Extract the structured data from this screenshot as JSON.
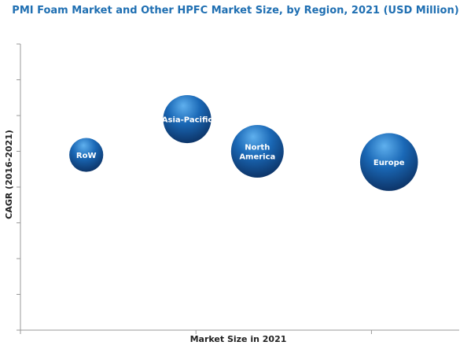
{
  "chart_data": {
    "type": "scatter",
    "title": "PMI Foam Market and Other HPFC Market Size, by Region, 2021 (USD Million)",
    "xlabel": "Market Size in 2021",
    "ylabel": "CAGR (2016-2021)",
    "xlim": [
      0,
      10
    ],
    "ylim": [
      0,
      8
    ],
    "series": [
      {
        "points": [
          {
            "label": "RoW",
            "x": 1.5,
            "y": 4.9,
            "size": 1.0
          },
          {
            "label": "Asia-Pacific",
            "x": 3.8,
            "y": 5.9,
            "size": 2.0
          },
          {
            "label": "North America",
            "x": 5.4,
            "y": 5.0,
            "size": 2.4
          },
          {
            "label": "Europe",
            "x": 8.4,
            "y": 4.7,
            "size": 2.9
          }
        ]
      }
    ]
  },
  "colors": {
    "title": "#1f6fb2",
    "bubble_light": "#5fb0ee",
    "bubble_mid": "#1a68b6",
    "bubble_dark": "#0b2e5f"
  }
}
